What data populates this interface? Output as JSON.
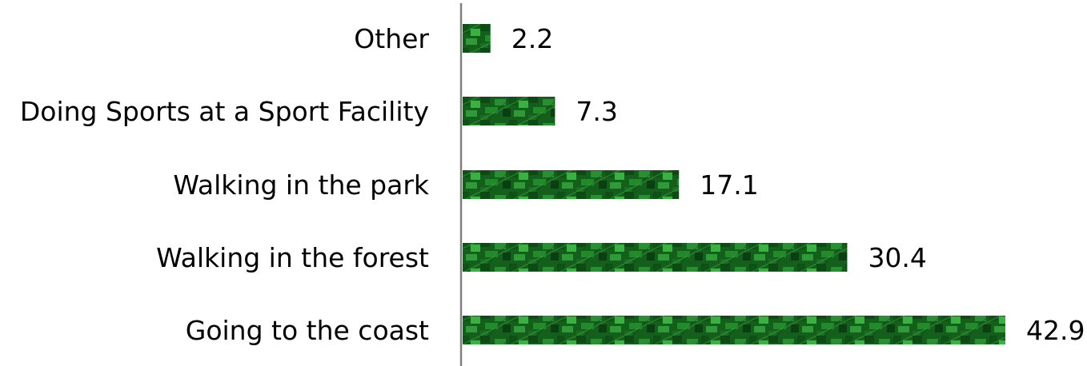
{
  "chart_data": {
    "type": "bar",
    "orientation": "horizontal",
    "categories": [
      "Other",
      "Doing Sports at a Sport Facility",
      "Walking in the park",
      "Walking in the forest",
      "Going to the coast"
    ],
    "values": [
      2.2,
      7.3,
      17.1,
      30.4,
      42.9
    ],
    "data_labels": [
      "2.2",
      "7.3",
      "17.1",
      "30.4",
      "42.9"
    ],
    "xlim": [
      0,
      42.9
    ],
    "grid": false,
    "legend": "none",
    "colors": {
      "bar_dark": "#0e4a14",
      "bar_mid": "#1d7a26",
      "bar_light": "#3cb043",
      "axis": "#7f7f7f",
      "text": "#000000"
    }
  }
}
